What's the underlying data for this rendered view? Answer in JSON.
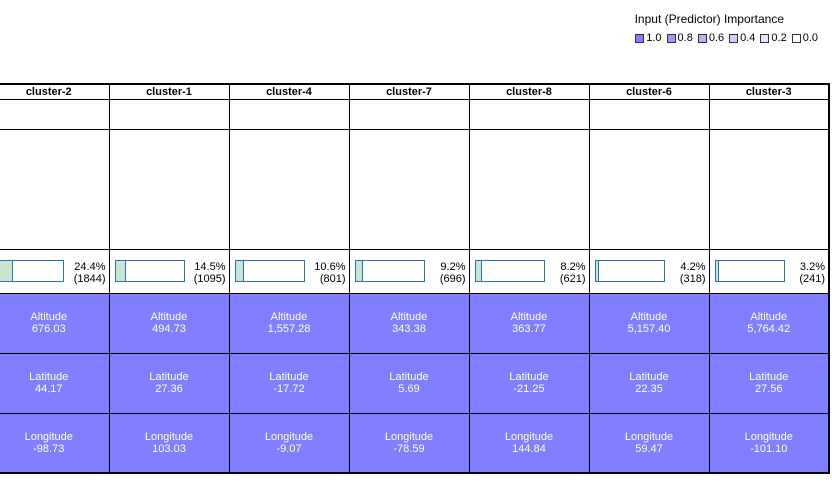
{
  "legend": {
    "title": "Input (Predictor) Importance",
    "items": [
      {
        "label": "1.0",
        "color": "#7f7fff"
      },
      {
        "label": "0.8",
        "color": "#9999ff"
      },
      {
        "label": "0.6",
        "color": "#b2b2ff"
      },
      {
        "label": "0.4",
        "color": "#ccccff"
      },
      {
        "label": "0.2",
        "color": "#e5e5ff"
      },
      {
        "label": "0.0",
        "color": "#ffffff"
      }
    ]
  },
  "feature_color": "#7f7fff",
  "clusters": [
    {
      "name": "cluster-2",
      "size_pct": "24.4%",
      "size_count": "(1844)",
      "fill": 0.244,
      "features": [
        {
          "label": "Altitude",
          "value": "676.03"
        },
        {
          "label": "Latitude",
          "value": "44.17"
        },
        {
          "label": "Longitude",
          "value": "-98.73"
        }
      ]
    },
    {
      "name": "cluster-1",
      "size_pct": "14.5%",
      "size_count": "(1095)",
      "fill": 0.145,
      "features": [
        {
          "label": "Altitude",
          "value": "494.73"
        },
        {
          "label": "Latitude",
          "value": "27.36"
        },
        {
          "label": "Longitude",
          "value": "103.03"
        }
      ]
    },
    {
      "name": "cluster-4",
      "size_pct": "10.6%",
      "size_count": "(801)",
      "fill": 0.106,
      "features": [
        {
          "label": "Altitude",
          "value": "1,557.28"
        },
        {
          "label": "Latitude",
          "value": "-17.72"
        },
        {
          "label": "Longitude",
          "value": "-9.07"
        }
      ]
    },
    {
      "name": "cluster-7",
      "size_pct": "9.2%",
      "size_count": "(696)",
      "fill": 0.092,
      "features": [
        {
          "label": "Altitude",
          "value": "343.38"
        },
        {
          "label": "Latitude",
          "value": "5.69"
        },
        {
          "label": "Longitude",
          "value": "-78.59"
        }
      ]
    },
    {
      "name": "cluster-8",
      "size_pct": "8.2%",
      "size_count": "(621)",
      "fill": 0.082,
      "features": [
        {
          "label": "Altitude",
          "value": "363.77"
        },
        {
          "label": "Latitude",
          "value": "-21.25"
        },
        {
          "label": "Longitude",
          "value": "144.84"
        }
      ]
    },
    {
      "name": "cluster-6",
      "size_pct": "4.2%",
      "size_count": "(318)",
      "fill": 0.042,
      "features": [
        {
          "label": "Altitude",
          "value": "5,157.40"
        },
        {
          "label": "Latitude",
          "value": "22.35"
        },
        {
          "label": "Longitude",
          "value": "59.47"
        }
      ]
    },
    {
      "name": "cluster-3",
      "size_pct": "3.2%",
      "size_count": "(241)",
      "fill": 0.032,
      "features": [
        {
          "label": "Altitude",
          "value": "5,764.42"
        },
        {
          "label": "Latitude",
          "value": "27.56"
        },
        {
          "label": "Longitude",
          "value": "-101.10"
        }
      ]
    }
  ]
}
